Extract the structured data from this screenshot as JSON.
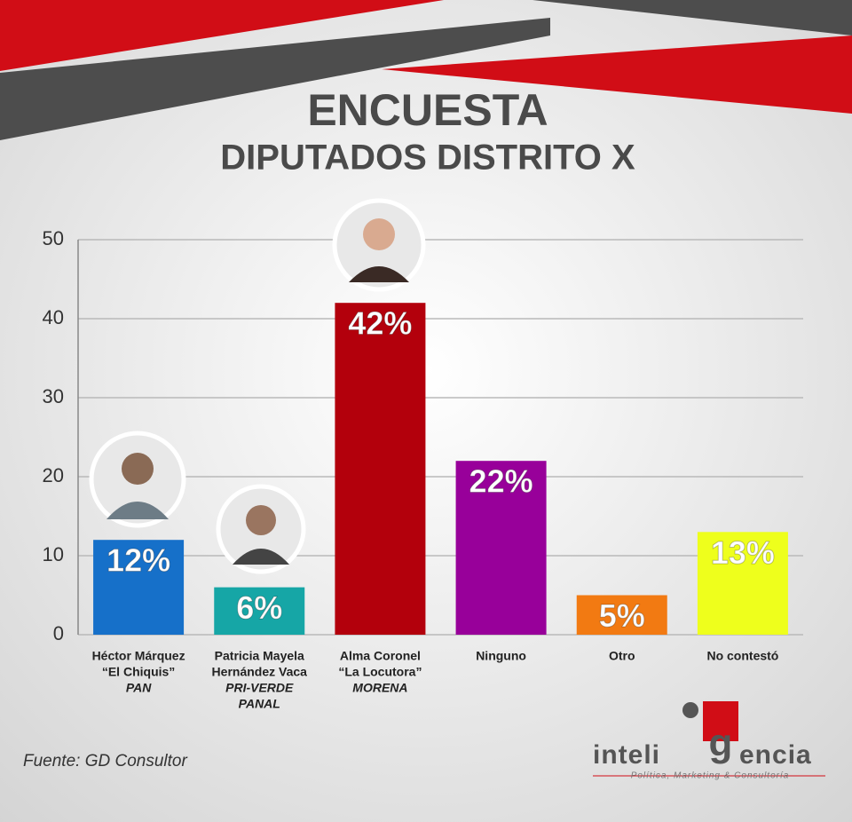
{
  "chart_data": {
    "type": "bar",
    "title": "ENCUESTA",
    "subtitle": "DIPUTADOS DISTRITO X",
    "categories": [
      [
        "Héctor Márquez",
        "“El Chiquis”"
      ],
      [
        "Patricia Mayela",
        "Hernández Vaca"
      ],
      [
        "Alma Coronel",
        "“La Locutora”"
      ],
      [
        "Ninguno"
      ],
      [
        "Otro"
      ],
      [
        "No contestó"
      ]
    ],
    "parties": [
      [
        "PAN"
      ],
      [
        "PRI-VERDE",
        "PANAL"
      ],
      [
        "MORENA"
      ],
      null,
      null,
      null
    ],
    "values": [
      12,
      6,
      42,
      22,
      5,
      13
    ],
    "value_labels": [
      "12%",
      "6%",
      "42%",
      "22%",
      "5%",
      "13%"
    ],
    "colors": [
      "#1670c9",
      "#16a6a6",
      "#b3000c",
      "#98009a",
      "#f27a12",
      "#eeff1c"
    ],
    "ylim": [
      0,
      50
    ],
    "yticks": [
      0,
      10,
      20,
      30,
      40,
      50
    ],
    "grid": true
  },
  "source": "Fuente: GD Consultor",
  "logo": {
    "left": "inteli",
    "mark": "g",
    "right": "encia",
    "tagline": "Política, Marketing & Consultoría"
  }
}
